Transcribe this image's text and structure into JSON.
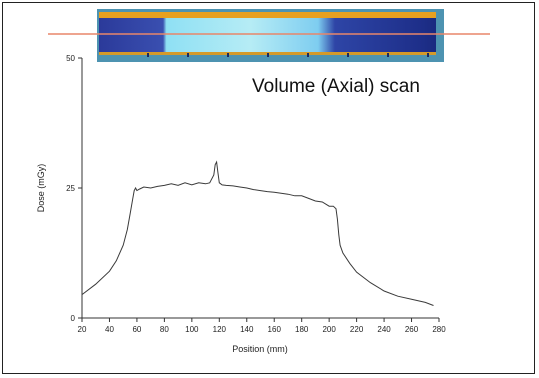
{
  "chart_data": {
    "type": "line",
    "annotation": "Volume (Axial) scan",
    "xlabel": "Position (mm)",
    "ylabel": "Dose (mGy)",
    "xlim": [
      20,
      280
    ],
    "ylim": [
      0,
      50
    ],
    "x_ticks": [
      "20",
      "40",
      "60",
      "80",
      "100",
      "120",
      "140",
      "160",
      "180",
      "200",
      "220",
      "240",
      "260",
      "280"
    ],
    "y_ticks": [
      "0",
      "25",
      "50"
    ],
    "grid": false,
    "line_color": "#3a3a3a",
    "scan_overlay_line_color": "#e8866a",
    "series": [
      {
        "x": [
          20,
          30,
          40,
          45,
          50,
          53,
          55,
          57,
          58,
          59,
          60,
          62,
          65,
          70,
          75,
          80,
          85,
          90,
          95,
          100,
          105,
          110,
          113,
          116,
          117,
          118,
          119,
          120,
          121,
          122,
          125,
          130,
          135,
          140,
          145,
          150,
          155,
          160,
          165,
          170,
          175,
          180,
          185,
          190,
          195,
          200,
          203,
          205,
          206,
          207,
          208,
          210,
          215,
          220,
          230,
          240,
          250,
          260,
          270,
          276
        ],
        "y": [
          4.5,
          6.5,
          9,
          11,
          14,
          17,
          20,
          23,
          24.5,
          25,
          24.5,
          24.8,
          25.2,
          25,
          25.3,
          25.5,
          25.8,
          25.5,
          26,
          25.6,
          26,
          25.8,
          26,
          27.5,
          29.5,
          30,
          28,
          26,
          25.8,
          25.6,
          25.5,
          25.4,
          25.2,
          25,
          24.7,
          24.5,
          24.3,
          24.2,
          24,
          23.8,
          23.5,
          23.5,
          23,
          22.5,
          22.3,
          21.5,
          21.5,
          21,
          19,
          16,
          14,
          12.5,
          10.5,
          8.8,
          6.8,
          5.2,
          4.2,
          3.6,
          3,
          2.4
        ]
      }
    ]
  }
}
